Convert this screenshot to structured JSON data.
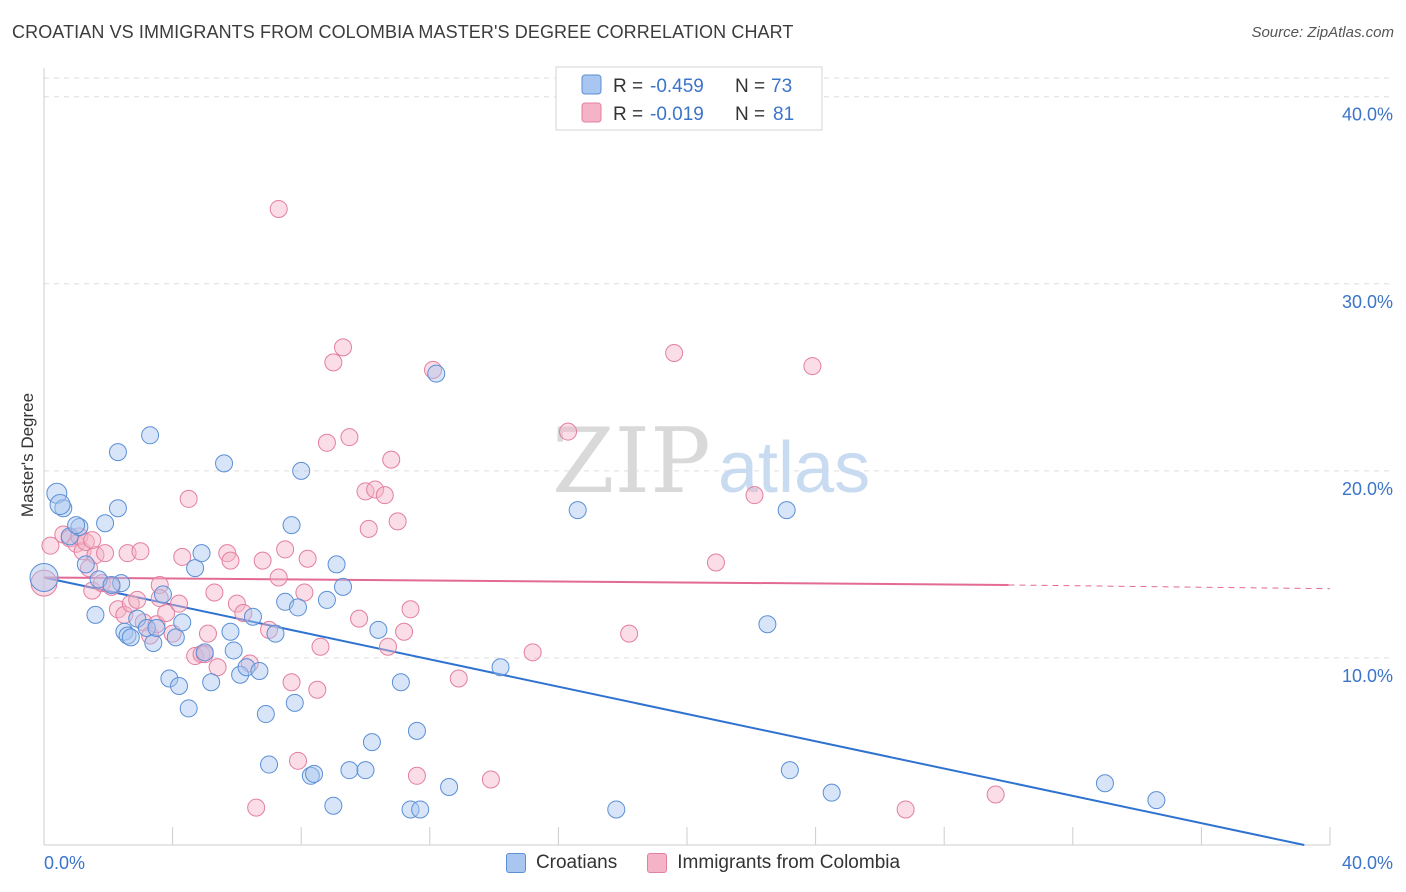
{
  "title": "CROATIAN VS IMMIGRANTS FROM COLOMBIA MASTER'S DEGREE CORRELATION CHART",
  "source": "Source: ZipAtlas.com",
  "watermark": {
    "zip": "ZIP",
    "atlas": "atlas"
  },
  "legend_top": [
    {
      "r_label": "R =",
      "r_value": "-0.459",
      "n_label": "N =",
      "n_value": "73"
    },
    {
      "r_label": "R =",
      "r_value": "-0.019",
      "n_label": "N =",
      "n_value": "81"
    }
  ],
  "bottom_legend": [
    {
      "label": "Croatians"
    },
    {
      "label": "Immigrants from Colombia"
    }
  ],
  "colors": {
    "blue_fill": "#a8c6ef",
    "blue_stroke": "#5b8fd6",
    "blue_line": "#2f72d0",
    "pink_fill": "#f5b3c8",
    "pink_stroke": "#e37fa0",
    "pink_line": "#e36a95",
    "tick_text": "#3b74c9",
    "grid": "#dddddd"
  },
  "chart_data": {
    "type": "scatter",
    "title": "CROATIAN VS IMMIGRANTS FROM COLOMBIA MASTER'S DEGREE CORRELATION CHART",
    "xlabel": "",
    "ylabel": "Master's Degree",
    "xlim": [
      0,
      40
    ],
    "ylim": [
      0,
      41
    ],
    "x_tick_labels": [
      "0.0%",
      "40.0%"
    ],
    "y_ticks": [
      10,
      20,
      30,
      40
    ],
    "y_tick_labels": [
      "10.0%",
      "20.0%",
      "30.0%",
      "40.0%"
    ],
    "grid": true,
    "series": [
      {
        "name": "Croatians",
        "r": -0.459,
        "n": 73,
        "trend": {
          "x0": 0,
          "y0": 14.3,
          "x1": 39.2,
          "y1": 0
        },
        "points": [
          [
            0.0,
            14.3
          ],
          [
            0.4,
            18.8
          ],
          [
            0.6,
            18.0
          ],
          [
            0.5,
            18.2
          ],
          [
            0.8,
            16.5
          ],
          [
            1.1,
            17.0
          ],
          [
            1.0,
            17.1
          ],
          [
            1.3,
            15.0
          ],
          [
            1.6,
            12.3
          ],
          [
            1.7,
            14.2
          ],
          [
            2.3,
            21.0
          ],
          [
            2.3,
            18.0
          ],
          [
            1.9,
            17.2
          ],
          [
            2.4,
            14.0
          ],
          [
            2.5,
            11.4
          ],
          [
            2.6,
            11.2
          ],
          [
            2.7,
            11.1
          ],
          [
            2.9,
            12.1
          ],
          [
            3.2,
            11.6
          ],
          [
            3.3,
            21.9
          ],
          [
            3.4,
            10.8
          ],
          [
            3.5,
            11.6
          ],
          [
            3.7,
            13.4
          ],
          [
            3.9,
            8.9
          ],
          [
            4.1,
            11.1
          ],
          [
            4.2,
            8.5
          ],
          [
            4.3,
            11.9
          ],
          [
            4.5,
            7.3
          ],
          [
            4.7,
            14.8
          ],
          [
            4.9,
            15.6
          ],
          [
            5.0,
            10.3
          ],
          [
            5.2,
            8.7
          ],
          [
            5.6,
            20.4
          ],
          [
            5.8,
            11.4
          ],
          [
            5.9,
            10.4
          ],
          [
            6.1,
            9.1
          ],
          [
            6.3,
            9.5
          ],
          [
            6.5,
            12.2
          ],
          [
            6.7,
            9.3
          ],
          [
            6.9,
            7.0
          ],
          [
            7.0,
            4.3
          ],
          [
            7.2,
            11.3
          ],
          [
            7.5,
            13.0
          ],
          [
            7.7,
            17.1
          ],
          [
            7.8,
            7.6
          ],
          [
            7.9,
            12.7
          ],
          [
            8.0,
            20.0
          ],
          [
            8.3,
            3.7
          ],
          [
            8.4,
            3.8
          ],
          [
            8.8,
            13.1
          ],
          [
            9.0,
            2.1
          ],
          [
            9.1,
            15.0
          ],
          [
            9.3,
            13.8
          ],
          [
            9.5,
            4.0
          ],
          [
            10.0,
            4.0
          ],
          [
            10.2,
            5.5
          ],
          [
            10.4,
            11.5
          ],
          [
            11.1,
            8.7
          ],
          [
            11.4,
            1.9
          ],
          [
            11.6,
            6.1
          ],
          [
            11.7,
            1.9
          ],
          [
            12.2,
            25.2
          ],
          [
            12.6,
            3.1
          ],
          [
            14.2,
            9.5
          ],
          [
            16.6,
            17.9
          ],
          [
            17.8,
            1.9
          ],
          [
            22.5,
            11.8
          ],
          [
            23.1,
            17.9
          ],
          [
            23.2,
            4.0
          ],
          [
            24.5,
            2.8
          ],
          [
            33.0,
            3.3
          ],
          [
            34.6,
            2.4
          ],
          [
            2.1,
            13.9
          ]
        ]
      },
      {
        "name": "Immigrants from Colombia",
        "r": -0.019,
        "n": 81,
        "trend": {
          "x0": 0,
          "y0": 14.3,
          "x1": 30.0,
          "y1": 13.9,
          "dash_to_x": 40.0,
          "dash_to_y": 13.7
        },
        "points": [
          [
            0.0,
            14.0
          ],
          [
            0.2,
            16.0
          ],
          [
            0.6,
            16.6
          ],
          [
            0.8,
            16.4
          ],
          [
            1.0,
            16.1
          ],
          [
            1.1,
            16.5
          ],
          [
            1.2,
            15.7
          ],
          [
            1.3,
            16.2
          ],
          [
            1.4,
            14.8
          ],
          [
            1.5,
            13.6
          ],
          [
            1.6,
            15.5
          ],
          [
            1.8,
            14.0
          ],
          [
            1.9,
            15.6
          ],
          [
            2.1,
            13.8
          ],
          [
            2.3,
            12.6
          ],
          [
            2.5,
            12.3
          ],
          [
            2.6,
            15.6
          ],
          [
            2.7,
            12.9
          ],
          [
            2.9,
            13.1
          ],
          [
            3.0,
            15.7
          ],
          [
            3.1,
            11.9
          ],
          [
            3.3,
            11.2
          ],
          [
            3.5,
            11.8
          ],
          [
            3.6,
            13.9
          ],
          [
            3.8,
            12.4
          ],
          [
            4.0,
            11.3
          ],
          [
            4.2,
            12.9
          ],
          [
            4.3,
            15.4
          ],
          [
            4.5,
            18.5
          ],
          [
            4.7,
            10.1
          ],
          [
            4.9,
            10.2
          ],
          [
            5.1,
            11.3
          ],
          [
            5.3,
            13.5
          ],
          [
            5.4,
            9.5
          ],
          [
            5.7,
            15.6
          ],
          [
            5.8,
            15.2
          ],
          [
            6.0,
            12.9
          ],
          [
            6.2,
            12.4
          ],
          [
            6.4,
            9.7
          ],
          [
            6.6,
            2.0
          ],
          [
            6.8,
            15.2
          ],
          [
            7.0,
            11.5
          ],
          [
            7.3,
            14.3
          ],
          [
            7.5,
            15.8
          ],
          [
            7.7,
            8.7
          ],
          [
            7.9,
            4.5
          ],
          [
            8.1,
            13.5
          ],
          [
            8.2,
            15.3
          ],
          [
            8.6,
            10.6
          ],
          [
            8.8,
            21.5
          ],
          [
            9.0,
            25.8
          ],
          [
            9.3,
            26.6
          ],
          [
            9.5,
            21.8
          ],
          [
            9.8,
            12.1
          ],
          [
            10.0,
            18.9
          ],
          [
            10.1,
            16.9
          ],
          [
            10.3,
            19.0
          ],
          [
            10.7,
            10.6
          ],
          [
            10.8,
            20.6
          ],
          [
            11.0,
            17.3
          ],
          [
            11.2,
            11.4
          ],
          [
            11.4,
            12.6
          ],
          [
            11.6,
            3.7
          ],
          [
            12.1,
            25.4
          ],
          [
            12.9,
            8.9
          ],
          [
            13.9,
            3.5
          ],
          [
            15.2,
            10.3
          ],
          [
            16.3,
            22.1
          ],
          [
            18.2,
            11.3
          ],
          [
            19.6,
            26.3
          ],
          [
            20.9,
            15.1
          ],
          [
            22.1,
            18.7
          ],
          [
            23.9,
            25.6
          ],
          [
            26.8,
            1.9
          ],
          [
            29.6,
            2.7
          ],
          [
            8.5,
            8.3
          ],
          [
            5.0,
            10.2
          ],
          [
            7.3,
            34.0
          ],
          [
            3.6,
            13.2
          ],
          [
            1.5,
            16.3
          ],
          [
            10.6,
            18.7
          ]
        ]
      }
    ]
  }
}
